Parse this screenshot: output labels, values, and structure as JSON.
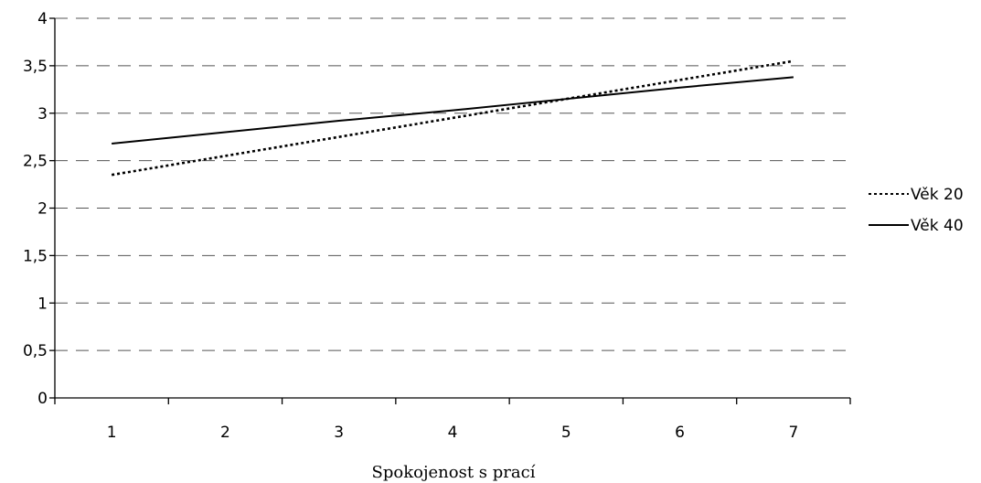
{
  "chart_data": {
    "type": "line",
    "x": [
      1,
      2,
      3,
      4,
      5,
      6,
      7
    ],
    "categories": [
      "1",
      "2",
      "3",
      "4",
      "5",
      "6",
      "7"
    ],
    "series": [
      {
        "name": "Věk 20",
        "style": "dotted",
        "color": "#000000",
        "values": [
          2.35,
          2.55,
          2.75,
          2.95,
          3.15,
          3.35,
          3.55
        ]
      },
      {
        "name": "Věk 40",
        "style": "solid",
        "color": "#000000",
        "values": [
          2.68,
          2.8,
          2.92,
          3.03,
          3.15,
          3.27,
          3.38
        ]
      }
    ],
    "yticks": [
      "0",
      "0,5",
      "1",
      "1,5",
      "2",
      "2,5",
      "3",
      "3,5",
      "4"
    ],
    "ylim": [
      0,
      4
    ],
    "xlabel": "Spokojenost s prací",
    "ylabel": "",
    "title": "",
    "grid": "horizontal dashed",
    "legend_position": "right"
  }
}
